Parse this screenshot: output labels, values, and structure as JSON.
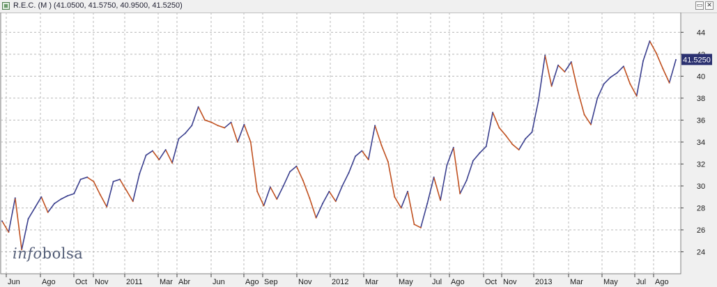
{
  "window": {
    "title": "R.E.C. (M ) (41.0500, 41.5750, 40.9500, 41.5250)",
    "restore_icon": "restore-window-icon",
    "close_icon": "close-window-icon",
    "restore_glyph": "▭",
    "close_glyph": "✕"
  },
  "brand": {
    "part1": "info",
    "part2": "bolsa"
  },
  "colors": {
    "up": "#3a3f8e",
    "down": "#c0501f",
    "grid": "#b8b8b8",
    "price_label_bg": "#2b3170"
  },
  "chart_data": {
    "type": "line",
    "series": [
      {
        "values": [
          26.8,
          25.8,
          28.9,
          24.2,
          27.0,
          28.0,
          29.0,
          27.6,
          28.4,
          28.8,
          29.1,
          29.3,
          30.6,
          30.8,
          30.4,
          29.2,
          28.1,
          30.4,
          30.6,
          29.6,
          28.6,
          31.1,
          32.8,
          33.2,
          32.4,
          33.3,
          32.1,
          34.3,
          34.8,
          35.5,
          37.2,
          36.0,
          35.8,
          35.5,
          35.3,
          35.8,
          34.0,
          35.6,
          34.0,
          29.5,
          28.2,
          29.9,
          28.8,
          30.0,
          31.3,
          31.8,
          30.5,
          28.9,
          27.1,
          28.4,
          29.5,
          28.6,
          30.0,
          31.2,
          32.7,
          33.2,
          32.4,
          35.5,
          33.7,
          32.2,
          29.0,
          28.0,
          29.5,
          26.5,
          26.2,
          28.4,
          30.8,
          28.7,
          31.9,
          33.5,
          29.3,
          30.5,
          32.3,
          33.0,
          33.6,
          36.7,
          35.3,
          34.6,
          33.8,
          33.3,
          34.3,
          34.9,
          37.8,
          41.9,
          39.1,
          41.0,
          40.4,
          41.3,
          38.7,
          36.5,
          35.6,
          38.0,
          39.3,
          39.9,
          40.3,
          40.9,
          39.3,
          38.2,
          41.4,
          43.2,
          42.1,
          40.7,
          39.4,
          41.5
        ]
      }
    ],
    "y_ticks": [
      "24",
      "26",
      "28",
      "30",
      "32",
      "34",
      "36",
      "38",
      "40",
      "42",
      "44"
    ],
    "ylim": [
      22,
      45.8
    ],
    "x_ticks": [
      "Jun",
      "Ago",
      "Oct",
      "Nov",
      "2011",
      "Mar",
      "Abr",
      "Jun",
      "Ago",
      "Sep",
      "Nov",
      "2012",
      "Mar",
      "May",
      "Jul",
      "Ago",
      "Oct",
      "Nov",
      "2013",
      "Mar",
      "May",
      "Jul",
      "Ago"
    ],
    "grid": true,
    "last_value": "41.5250"
  }
}
